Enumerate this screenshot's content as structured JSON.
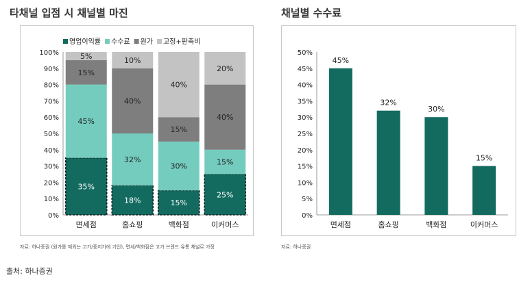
{
  "source_line": "출처: 하나증권",
  "chart_data": [
    {
      "type": "bar",
      "stacked": true,
      "title": "타채널 입점 시 채널별 마진",
      "categories": [
        "면세점",
        "홈쇼핑",
        "백화점",
        "이커머스"
      ],
      "series": [
        {
          "name": "영업이익률",
          "values": [
            35,
            18,
            15,
            25
          ],
          "color": "#136b60"
        },
        {
          "name": "수수료",
          "values": [
            45,
            32,
            30,
            15
          ],
          "color": "#74ccbe"
        },
        {
          "name": "원가",
          "values": [
            15,
            40,
            15,
            40
          ],
          "color": "#7e7e7e"
        },
        {
          "name": "고정+판촉비",
          "values": [
            5,
            10,
            40,
            20
          ],
          "color": "#c3c3c3"
        }
      ],
      "ylim": [
        0,
        100
      ],
      "yticks": [
        "0%",
        "10%",
        "20%",
        "30%",
        "40%",
        "50%",
        "60%",
        "70%",
        "80%",
        "90%",
        "100%"
      ],
      "legend": "top",
      "grid": false,
      "note": "자료: 하나증권 (원가를 제외는 고가/중저가에 기인), 면세/백화점은 고가 브랜드 유통 채널로 가정"
    },
    {
      "type": "bar",
      "title": "채널별 수수료",
      "categories": [
        "면세점",
        "홈쇼핑",
        "백화점",
        "이커머스"
      ],
      "values": [
        45,
        32,
        30,
        15
      ],
      "color": "#136b60",
      "ylim": [
        0,
        50
      ],
      "yticks": [
        "0%",
        "5%",
        "10%",
        "15%",
        "20%",
        "25%",
        "30%",
        "35%",
        "40%",
        "45%",
        "50%"
      ],
      "grid": false,
      "note": "자료: 하나증권"
    }
  ]
}
